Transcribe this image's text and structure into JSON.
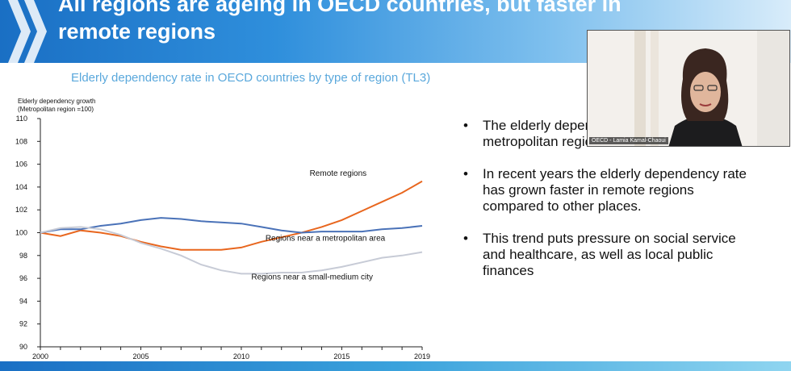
{
  "slide": {
    "title_line1": "All regions are ageing in OECD countries, but faster in",
    "title_line2": "remote regions",
    "chart_title": "Elderly dependency rate in OECD countries by type of region (TL3)",
    "bullets": [
      "The elderly dependency rate is highest in metropolitan regions",
      "In recent years the elderly dependency rate has grown faster in remote regions compared to other places.",
      "This trend puts pressure on social service and healthcare, as well as local public finances"
    ],
    "bullet_char": "•",
    "video_label": "OECD - Lamia Kamal-Chaoui"
  },
  "chart_data": {
    "type": "line",
    "title": "Elderly dependency rate in OECD countries by type of region (TL3)",
    "ylabel_line1": "Elderly dependency growth",
    "ylabel_line2": "(Metropolitan region =100)",
    "xlabel": "",
    "x": [
      2000,
      2001,
      2002,
      2003,
      2004,
      2005,
      2006,
      2007,
      2008,
      2009,
      2010,
      2011,
      2012,
      2013,
      2014,
      2015,
      2016,
      2017,
      2018,
      2019
    ],
    "xticks": [
      2000,
      2005,
      2010,
      2015,
      2019
    ],
    "yticks": [
      90,
      92,
      94,
      96,
      98,
      100,
      102,
      104,
      106,
      108,
      110
    ],
    "ylim": [
      90,
      110
    ],
    "series": [
      {
        "name": "Remote regions",
        "color": "#e8661e",
        "values": [
          100.0,
          99.7,
          100.2,
          100.0,
          99.7,
          99.2,
          98.8,
          98.5,
          98.5,
          98.5,
          98.7,
          99.2,
          99.6,
          100.0,
          100.5,
          101.1,
          101.9,
          102.7,
          103.5,
          104.5
        ]
      },
      {
        "name": "Regions near a metropolitan area",
        "color": "#4a72b8",
        "values": [
          100.0,
          100.3,
          100.3,
          100.6,
          100.8,
          101.1,
          101.3,
          101.2,
          101.0,
          100.9,
          100.8,
          100.5,
          100.2,
          100.0,
          100.1,
          100.1,
          100.1,
          100.3,
          100.4,
          100.6
        ]
      },
      {
        "name": "Regions near a small-medium city",
        "color": "#c7cbd6",
        "values": [
          100.0,
          100.4,
          100.5,
          100.3,
          99.8,
          99.1,
          98.6,
          98.0,
          97.2,
          96.7,
          96.4,
          96.4,
          96.5,
          96.5,
          96.7,
          97.0,
          97.4,
          97.8,
          98.0,
          98.3
        ]
      }
    ],
    "grid": false
  }
}
